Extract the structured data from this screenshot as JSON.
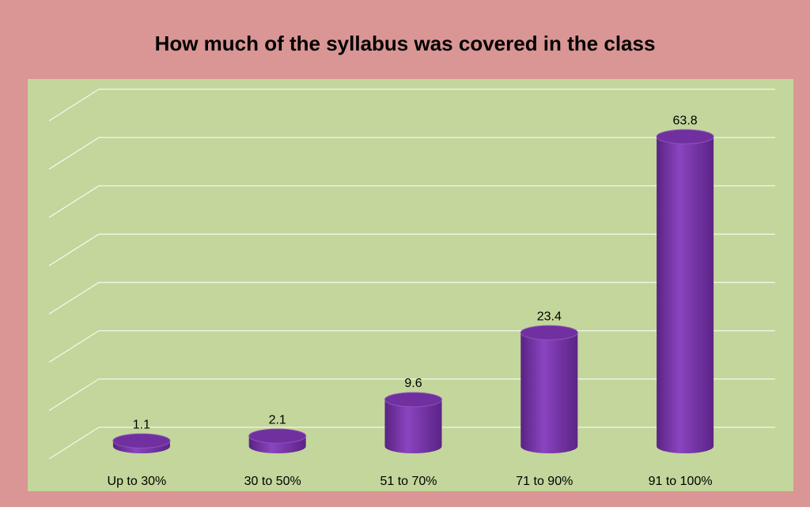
{
  "chart_data": {
    "type": "bar",
    "title": "How much of the syllabus was covered in the class",
    "categories": [
      "Up to 30%",
      "30 to 50%",
      "51 to 70%",
      "71 to 90%",
      "91 to 100%"
    ],
    "values": [
      1.1,
      2.1,
      9.6,
      23.4,
      63.8
    ],
    "color": "#7030a0",
    "ylim": [
      0,
      70
    ],
    "yticks": [
      0,
      10,
      20,
      30,
      40,
      50,
      60,
      70
    ],
    "grid": true
  }
}
